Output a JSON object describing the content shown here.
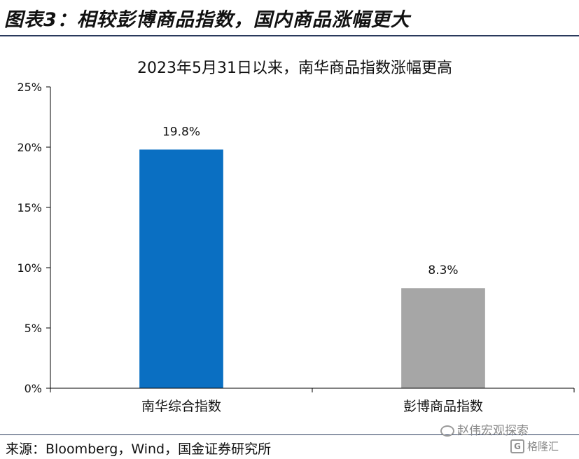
{
  "figure": {
    "title": "图表3：相较彭博商品指数，国内商品涨幅更大",
    "source": "来源：Bloomberg，Wind，国金证券研究所"
  },
  "watermark": {
    "text": "赵伟宏观探索",
    "sub": "格隆汇",
    "sub_icon": "G"
  },
  "chart_data": {
    "type": "bar",
    "title": "2023年5月31日以来，南华商品指数涨幅更高",
    "categories": [
      "南华综合指数",
      "彭博商品指数"
    ],
    "values": [
      19.8,
      8.3
    ],
    "data_labels": [
      "19.8%",
      "8.3%"
    ],
    "colors": [
      "#0a6fc2",
      "#a6a6a6"
    ],
    "ylim": [
      0,
      25
    ],
    "yticks": [
      0,
      5,
      10,
      15,
      20,
      25
    ],
    "ytick_labels": [
      "0%",
      "5%",
      "10%",
      "15%",
      "20%",
      "25%"
    ],
    "xlabel": "",
    "ylabel": "",
    "grid": false,
    "legend": "none"
  }
}
